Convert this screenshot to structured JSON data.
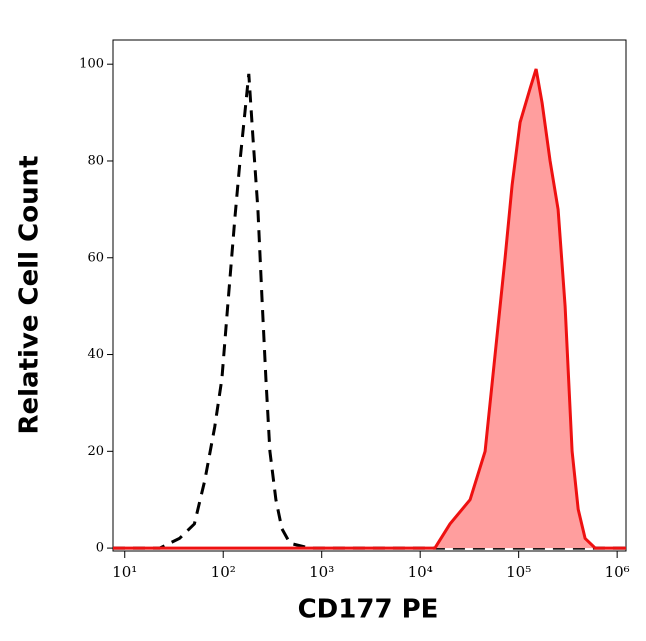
{
  "chart_data": {
    "type": "histogram-overlay",
    "xlabel": "CD177 PE",
    "ylabel": "Relative Cell Count",
    "xscale": "log",
    "xlim": [
      7.6,
      1230000
    ],
    "ylim": [
      -0.6,
      105
    ],
    "xticks": [
      {
        "value": 10,
        "label": "10¹"
      },
      {
        "value": 100,
        "label": "10²"
      },
      {
        "value": 1000,
        "label": "10³"
      },
      {
        "value": 10000,
        "label": "10⁴"
      },
      {
        "value": 100000,
        "label": "10⁵"
      },
      {
        "value": 1000000,
        "label": "10⁶"
      }
    ],
    "yticks": [
      0,
      20,
      40,
      60,
      80,
      100
    ],
    "series": [
      {
        "color": "#000000",
        "style": "dashed",
        "fill": false,
        "x": [
          7.6,
          22.7,
          36,
          51,
          65,
          82,
          97,
          111,
          131,
          148,
          166,
          182,
          200,
          225,
          247,
          271,
          298,
          343,
          394,
          476,
          759,
          1230000
        ],
        "values": [
          0,
          0,
          2,
          5,
          14,
          25,
          35,
          50,
          68,
          80,
          90,
          98,
          85,
          70,
          52,
          35,
          20,
          10,
          4,
          1,
          0,
          0
        ]
      },
      {
        "color": "#ee1111",
        "style": "solid",
        "fill": true,
        "fill_color": "#ff9e9e",
        "x": [
          7.6,
          14100,
          20100,
          32100,
          45600,
          57600,
          72800,
          85700,
          103300,
          130600,
          150300,
          173000,
          208500,
          251300,
          296300,
          349000,
          402000,
          473000,
          598000,
          1230000
        ],
        "values": [
          0,
          0,
          5,
          10,
          20,
          40,
          60,
          75,
          88,
          95,
          99,
          92,
          80,
          70,
          50,
          20,
          8,
          2,
          0,
          0
        ]
      }
    ]
  }
}
